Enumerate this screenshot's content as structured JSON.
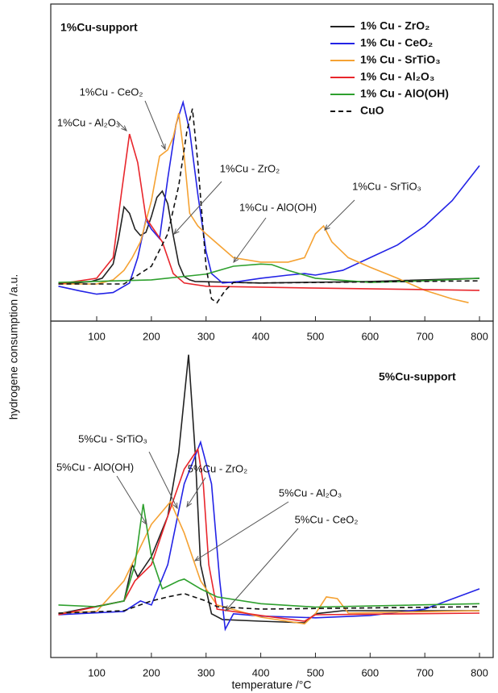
{
  "chart_data": [
    {
      "type": "line",
      "title": "1%Cu-support",
      "ylabel": "hydrogene consumption /a.u.",
      "xlim": [
        16,
        825
      ],
      "xticks": [
        100,
        200,
        300,
        400,
        500,
        600,
        700,
        800
      ],
      "ylim": [
        0,
        100
      ],
      "legend": "top-right",
      "series": [
        {
          "name": "1% Cu - ZrO₂",
          "color": "#222222",
          "dash": false,
          "x": [
            30,
            60,
            90,
            110,
            130,
            140,
            150,
            160,
            170,
            180,
            190,
            200,
            210,
            220,
            230,
            240,
            250,
            260,
            270,
            280,
            400,
            600,
            800
          ],
          "values": [
            12,
            12,
            12.5,
            13.5,
            18,
            26,
            36,
            34,
            29,
            27,
            28,
            33,
            39,
            41,
            37,
            27,
            18,
            14,
            13,
            12.5,
            12,
            12.5,
            13.5
          ]
        },
        {
          "name": "1% Cu - CeO₂",
          "color": "#2323e6",
          "dash": false,
          "x": [
            30,
            70,
            100,
            130,
            160,
            175,
            190,
            200,
            215,
            230,
            245,
            258,
            270,
            285,
            300,
            310,
            330,
            360,
            400,
            450,
            480,
            500,
            550,
            600,
            650,
            700,
            750,
            800
          ],
          "values": [
            11,
            9.5,
            8.5,
            9,
            12,
            20,
            32,
            29,
            26,
            45,
            62,
            69,
            60,
            40,
            22,
            15,
            12,
            12.5,
            13.5,
            14.5,
            15,
            14.5,
            16,
            20,
            24,
            30,
            38,
            49
          ]
        },
        {
          "name": "1% Cu - SrTiO₃",
          "color": "#f5a233",
          "dash": false,
          "x": [
            30,
            100,
            130,
            150,
            165,
            180,
            200,
            215,
            230,
            240,
            250,
            260,
            270,
            285,
            300,
            350,
            400,
            450,
            480,
            500,
            515,
            530,
            560,
            600,
            650,
            700,
            750,
            780
          ],
          "values": [
            11.7,
            11.7,
            13,
            16,
            20,
            25,
            38,
            52,
            54,
            58,
            65.6,
            52,
            34,
            30,
            27.5,
            20,
            18.6,
            18.6,
            20,
            27.5,
            30,
            25,
            20,
            17,
            13.5,
            9.7,
            7,
            5.8
          ]
        },
        {
          "name": "1% Cu - Al₂O₃",
          "color": "#e8262c",
          "dash": false,
          "x": [
            30,
            100,
            130,
            145,
            160,
            175,
            190,
            200,
            220,
            240,
            260,
            300,
            500,
            800
          ],
          "values": [
            11.7,
            13.5,
            20,
            40,
            59,
            50,
            32.6,
            30,
            25,
            15,
            12,
            11,
            10.4,
            9.7
          ]
        },
        {
          "name": "1% Cu - AlO(OH)",
          "color": "#2ea02e",
          "dash": false,
          "x": [
            30,
            200,
            300,
            350,
            400,
            420,
            450,
            500,
            600,
            700,
            800
          ],
          "values": [
            12.2,
            13,
            14.8,
            17.3,
            18,
            17.8,
            16,
            13.5,
            12.2,
            12.7,
            13.5
          ]
        },
        {
          "name": "CuO",
          "color": "#111111",
          "dash": true,
          "x": [
            30,
            150,
            200,
            230,
            250,
            265,
            275,
            285,
            300,
            310,
            320,
            335,
            350,
            400,
            800
          ],
          "values": [
            11.7,
            11.7,
            17.3,
            27.5,
            42.7,
            60,
            67,
            50,
            17.3,
            7,
            5.8,
            9.7,
            12.2,
            12,
            12.7
          ]
        }
      ],
      "annotations": [
        "1%Cu - CeO₂",
        "1%Cu - Al₂O₃",
        "1%Cu - ZrO₂",
        "1%Cu - AlO(OH)",
        "1%Cu - SrTiO₃"
      ]
    },
    {
      "type": "line",
      "title": "5%Cu-support",
      "xlabel": "temperature /°C",
      "xlim": [
        16,
        825
      ],
      "xticks": [
        100,
        200,
        300,
        400,
        500,
        600,
        700,
        800
      ],
      "ylim": [
        0,
        100
      ],
      "series": [
        {
          "color": "#222222",
          "dash": false,
          "x": [
            30,
            150,
            165,
            175,
            200,
            230,
            250,
            268,
            280,
            290,
            310,
            330,
            400,
            480,
            500,
            550,
            800
          ],
          "values": [
            13,
            16.8,
            27.6,
            24,
            30,
            42,
            61,
            90,
            61,
            27.6,
            13,
            11.3,
            10.8,
            10.3,
            13,
            13.9,
            13.9
          ]
        },
        {
          "color": "#2323e6",
          "dash": false,
          "x": [
            30,
            150,
            180,
            200,
            230,
            260,
            290,
            310,
            325,
            335,
            350,
            400,
            500,
            600,
            700,
            800
          ],
          "values": [
            12.7,
            13.7,
            16.8,
            15.6,
            27.6,
            51.6,
            64,
            51.6,
            22.8,
            8.4,
            13,
            12.3,
            11.8,
            12.5,
            14.4,
            20.4
          ]
        },
        {
          "color": "#f5a233",
          "dash": false,
          "x": [
            30,
            100,
            150,
            200,
            235,
            260,
            290,
            320,
            400,
            480,
            500,
            520,
            540,
            560,
            800
          ],
          "values": [
            13.2,
            13.7,
            22.8,
            39.6,
            46.3,
            37,
            22.8,
            15.6,
            12,
            10,
            13,
            18,
            17.5,
            13.2,
            13.9
          ]
        },
        {
          "color": "#e8262c",
          "dash": false,
          "x": [
            30,
            150,
            170,
            200,
            230,
            260,
            285,
            295,
            305,
            320,
            400,
            480,
            500,
            800
          ],
          "values": [
            12.7,
            16.8,
            22.8,
            27.6,
            42,
            56,
            62,
            51.6,
            27.6,
            14.4,
            12.5,
            10.8,
            12.7,
            13.2
          ]
        },
        {
          "color": "#2ea02e",
          "dash": false,
          "x": [
            30,
            100,
            150,
            170,
            185,
            200,
            220,
            250,
            260,
            290,
            320,
            400,
            500,
            800
          ],
          "values": [
            15.6,
            15.1,
            16.8,
            27.6,
            45.6,
            30,
            20.4,
            22.8,
            23.3,
            20.4,
            18,
            16,
            15,
            16
          ]
        },
        {
          "color": "#111111",
          "dash": true,
          "x": [
            30,
            150,
            200,
            230,
            260,
            300,
            320,
            400,
            800
          ],
          "values": [
            13.2,
            13.9,
            16.8,
            18,
            19,
            16.8,
            15.1,
            14.4,
            15.1
          ]
        }
      ],
      "annotations": [
        "5%Cu - SrTiO₃",
        "5%Cu - AlO(OH)",
        "5%Cu - ZrO₂",
        "5%Cu - Al₂O₃",
        "5%Cu - CeO₂"
      ]
    }
  ]
}
